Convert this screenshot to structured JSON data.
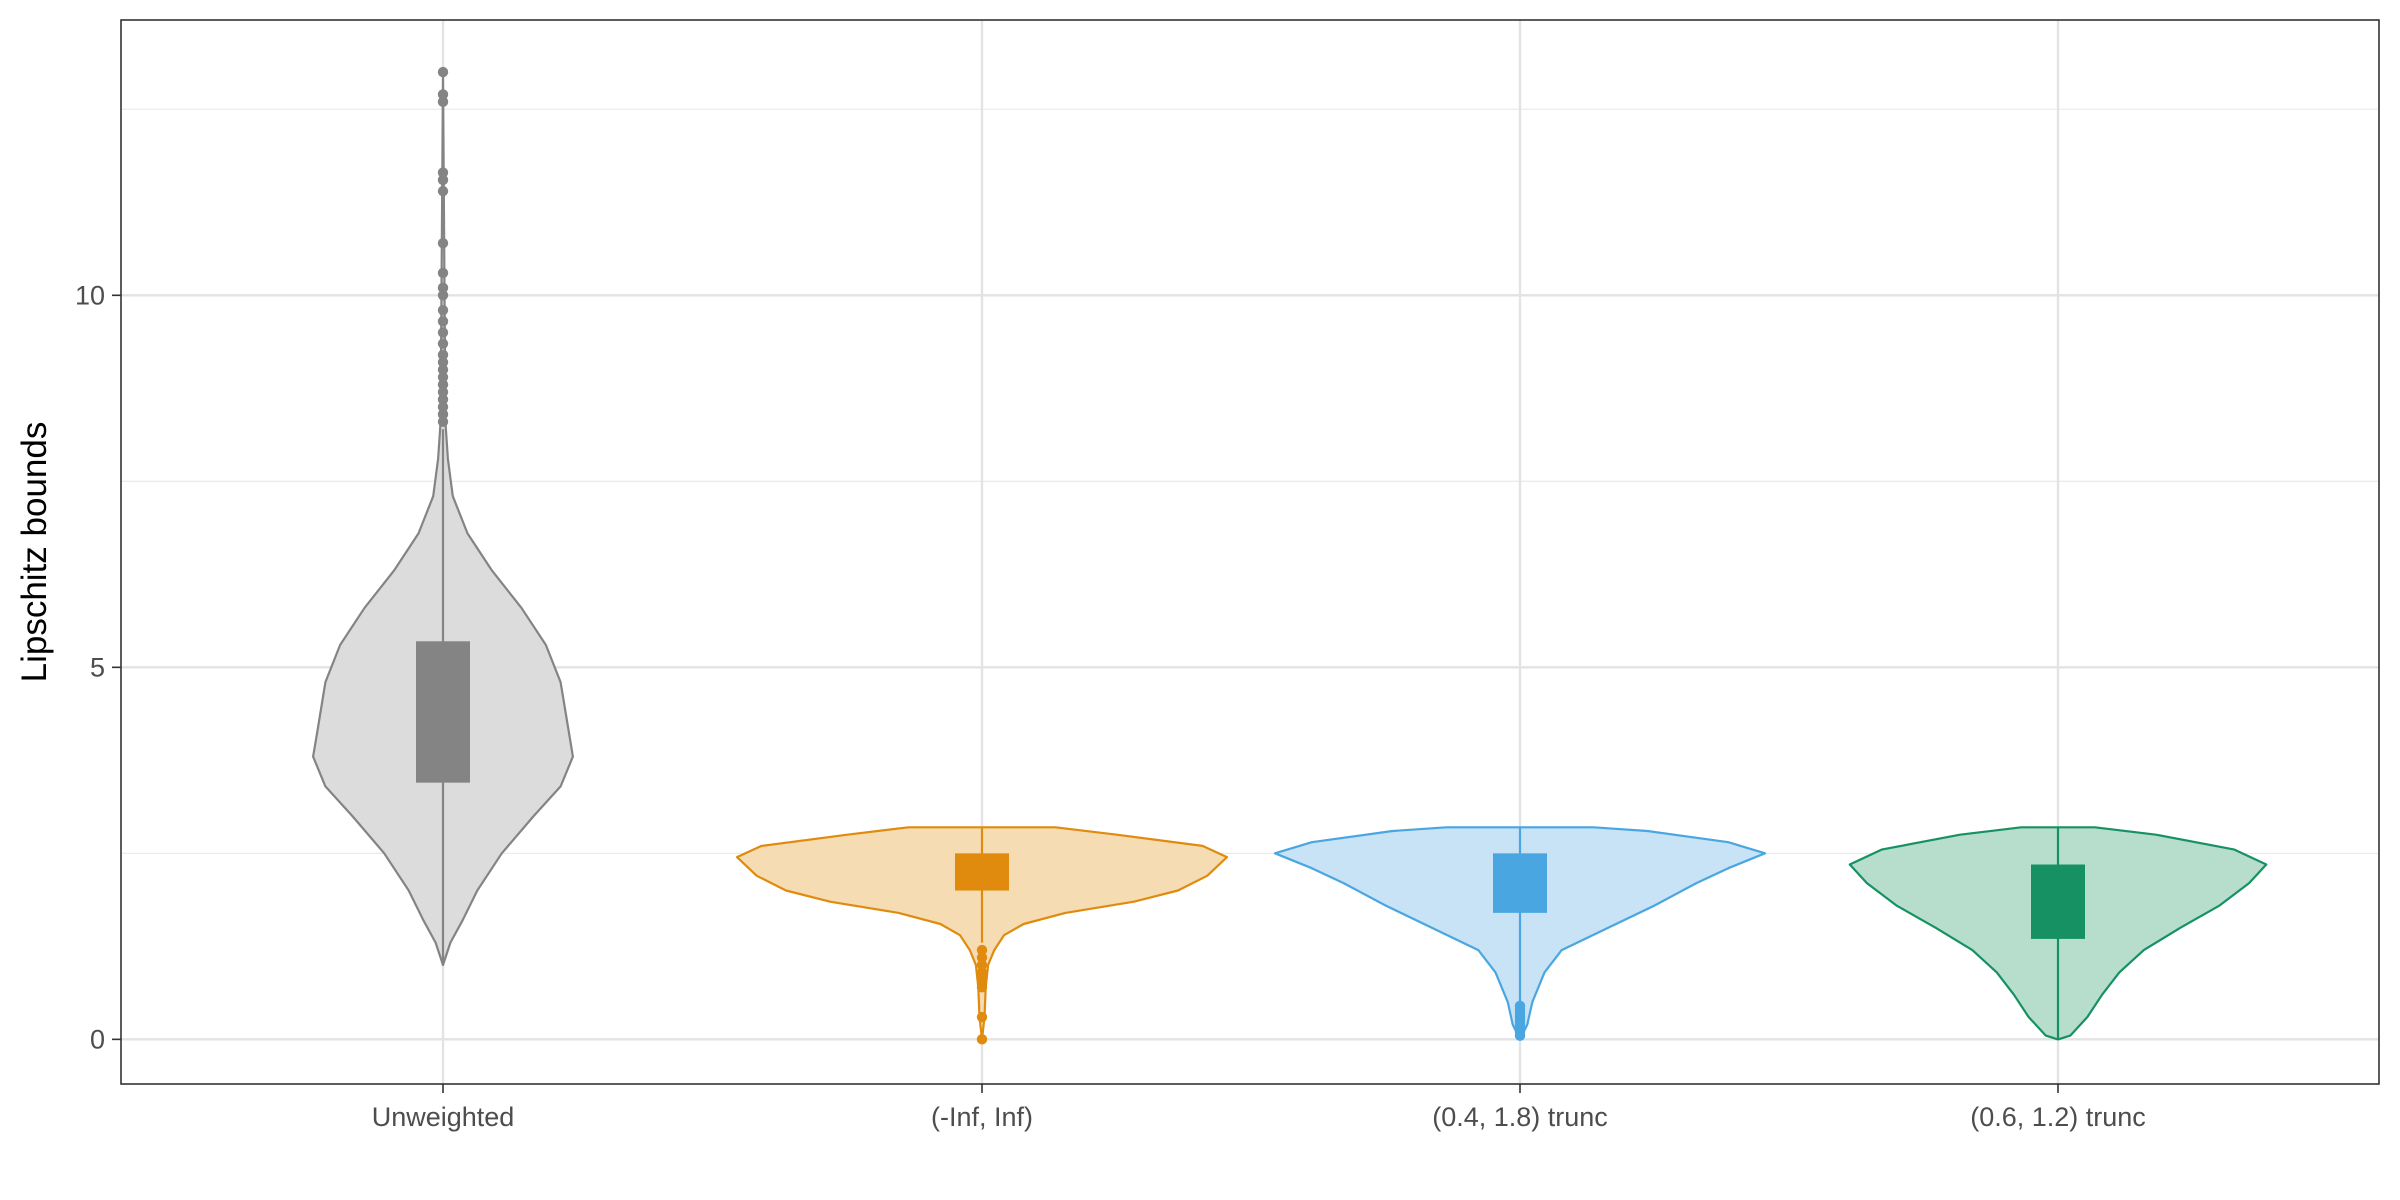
{
  "chart_data": {
    "type": "violin",
    "title": "",
    "xlabel": "",
    "ylabel": "Lipschitz bounds",
    "ylim": [
      -0.6,
      13.7
    ],
    "yticks": [
      0,
      5,
      10
    ],
    "ytick_labels": [
      "0",
      "5",
      "10"
    ],
    "grid": true,
    "legend": "none",
    "categories": [
      "Unweighted",
      "(-Inf, Inf)",
      "(0.4, 1.8) trunc",
      "(0.6, 1.2) trunc"
    ],
    "series": [
      {
        "category": "Unweighted",
        "color": "#848484",
        "fill": "#dcdcdc",
        "box": {
          "q1": 3.45,
          "q3": 5.35,
          "whisker_low": 1.0,
          "whisker_high": 8.2
        },
        "outliers": [
          8.3,
          8.4,
          8.5,
          8.6,
          8.7,
          8.8,
          8.9,
          9.0,
          9.1,
          9.2,
          9.35,
          9.5,
          9.65,
          9.8,
          10.0,
          10.1,
          10.3,
          10.7,
          11.4,
          11.55,
          11.65,
          12.6,
          12.7,
          13.0
        ],
        "density": [
          [
            1.0,
            0.0
          ],
          [
            1.3,
            0.03
          ],
          [
            1.6,
            0.08
          ],
          [
            2.0,
            0.14
          ],
          [
            2.5,
            0.24
          ],
          [
            3.0,
            0.37
          ],
          [
            3.4,
            0.48
          ],
          [
            3.8,
            0.53
          ],
          [
            4.2,
            0.51
          ],
          [
            4.8,
            0.48
          ],
          [
            5.3,
            0.42
          ],
          [
            5.8,
            0.32
          ],
          [
            6.3,
            0.2
          ],
          [
            6.8,
            0.1
          ],
          [
            7.3,
            0.04
          ],
          [
            7.8,
            0.02
          ],
          [
            8.3,
            0.01
          ],
          [
            13.0,
            0.0
          ]
        ]
      },
      {
        "category": "(-Inf, Inf)",
        "color": "#e08b0e",
        "fill": "#f5dcb3",
        "box": {
          "q1": 2.0,
          "q3": 2.5,
          "whisker_low": 1.3,
          "whisker_high": 2.85
        },
        "outliers": [
          1.2,
          1.1,
          1.0,
          0.9,
          0.8,
          0.7,
          0.3,
          0.0
        ],
        "density": [
          [
            0.0,
            0.0
          ],
          [
            0.3,
            0.01
          ],
          [
            0.7,
            0.015
          ],
          [
            1.0,
            0.025
          ],
          [
            1.2,
            0.05
          ],
          [
            1.4,
            0.09
          ],
          [
            1.55,
            0.17
          ],
          [
            1.7,
            0.34
          ],
          [
            1.85,
            0.62
          ],
          [
            2.0,
            0.8
          ],
          [
            2.2,
            0.92
          ],
          [
            2.45,
            1.0
          ],
          [
            2.6,
            0.9
          ],
          [
            2.75,
            0.55
          ],
          [
            2.85,
            0.3
          ]
        ]
      },
      {
        "category": "(0.4, 1.8) trunc",
        "color": "#4aa6e0",
        "fill": "#c8e3f6",
        "box": {
          "q1": 1.7,
          "q3": 2.5,
          "whisker_low": 0.5,
          "whisker_high": 2.85
        },
        "outliers": [
          0.45,
          0.4,
          0.35,
          0.3,
          0.25,
          0.2,
          0.15,
          0.1,
          0.05
        ],
        "density": [
          [
            0.0,
            0.0
          ],
          [
            0.2,
            0.03
          ],
          [
            0.5,
            0.05
          ],
          [
            0.9,
            0.1
          ],
          [
            1.2,
            0.17
          ],
          [
            1.5,
            0.36
          ],
          [
            1.8,
            0.55
          ],
          [
            2.1,
            0.72
          ],
          [
            2.3,
            0.85
          ],
          [
            2.5,
            1.0
          ],
          [
            2.65,
            0.85
          ],
          [
            2.8,
            0.52
          ],
          [
            2.85,
            0.3
          ]
        ]
      },
      {
        "category": "(0.6, 1.2) trunc",
        "color": "#169163",
        "fill": "#b7decd",
        "box": {
          "q1": 1.35,
          "q3": 2.35,
          "whisker_low": 0.0,
          "whisker_high": 2.85
        },
        "outliers": [],
        "density": [
          [
            0.0,
            0.0
          ],
          [
            0.05,
            0.05
          ],
          [
            0.3,
            0.12
          ],
          [
            0.6,
            0.18
          ],
          [
            0.9,
            0.25
          ],
          [
            1.2,
            0.35
          ],
          [
            1.5,
            0.5
          ],
          [
            1.8,
            0.66
          ],
          [
            2.1,
            0.78
          ],
          [
            2.35,
            0.85
          ],
          [
            2.55,
            0.72
          ],
          [
            2.75,
            0.4
          ],
          [
            2.85,
            0.15
          ]
        ]
      }
    ]
  }
}
